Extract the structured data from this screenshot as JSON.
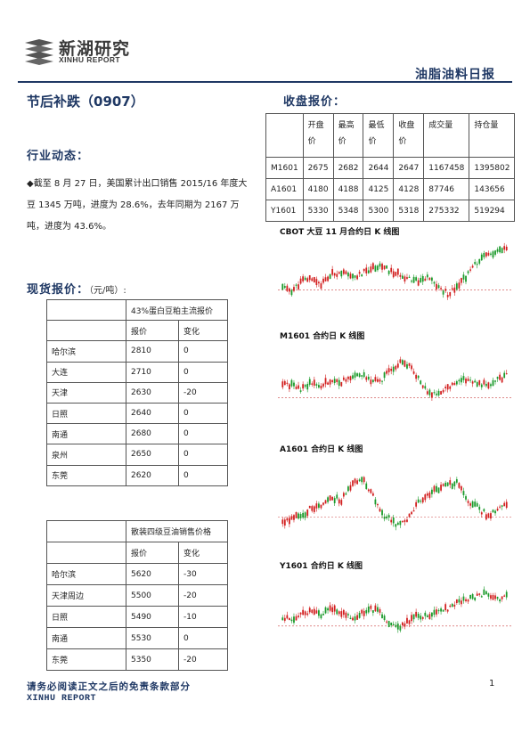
{
  "header": {
    "logo_cn": "新湖研究",
    "logo_en": "XINHU REPORT",
    "report_type": "油脂油料日报"
  },
  "title": "节后补跌（0907）",
  "industry": {
    "heading": "行业动态：",
    "text": "◆截至 8 月 27 日，美国累计出口销售 2015/16 年度大豆 1345 万吨，进度为 28.6%，去年同期为 2167 万吨，进度为 43.6%。"
  },
  "closing": {
    "heading": "收盘报价：",
    "columns": [
      "",
      "开盘价",
      "最高价",
      "最低价",
      "收盘价",
      "成交量",
      "持仓量"
    ],
    "rows": [
      [
        "M1601",
        "2675",
        "2682",
        "2644",
        "2647",
        "1167458",
        "1395802"
      ],
      [
        "A1601",
        "4180",
        "4188",
        "4125",
        "4128",
        "87746",
        "143656"
      ],
      [
        "Y1601",
        "5330",
        "5348",
        "5300",
        "5318",
        "275332",
        "519294"
      ]
    ]
  },
  "spot": {
    "heading": "现货报价：",
    "unit": "（元/吨）:",
    "table1": {
      "title": "43%蛋白豆粕主流报价",
      "col1": "报价",
      "col2": "变化",
      "rows": [
        [
          "哈尔滨",
          "2810",
          "0"
        ],
        [
          "大连",
          "2710",
          "0"
        ],
        [
          "天津",
          "2630",
          "-20"
        ],
        [
          "日照",
          "2640",
          "0"
        ],
        [
          "南通",
          "2680",
          "0"
        ],
        [
          "泉州",
          "2650",
          "0"
        ],
        [
          "东莞",
          "2620",
          "0"
        ]
      ]
    },
    "table2": {
      "title": "散装四级豆油销售价格",
      "col1": "报价",
      "col2": "变化",
      "rows": [
        [
          "哈尔滨",
          "5620",
          "-30"
        ],
        [
          "天津周边",
          "5500",
          "-20"
        ],
        [
          "日照",
          "5490",
          "-10"
        ],
        [
          "南通",
          "5530",
          "0"
        ],
        [
          "东莞",
          "5350",
          "-20"
        ]
      ]
    }
  },
  "charts": [
    {
      "title": "CBOT 大豆 11 月合约日 K 线图",
      "seed": 11,
      "profile": "cbot"
    },
    {
      "title": "M1601 合约日 K 线图",
      "seed": 23,
      "profile": "m"
    },
    {
      "title": "A1601 合约日 K 线图",
      "seed": 37,
      "profile": "a"
    },
    {
      "title": "Y1601 合约日 K 线图",
      "seed": 51,
      "profile": "y"
    }
  ],
  "colors": {
    "up": "#d21f1f",
    "down": "#1a9a2a",
    "brand": "#1f3864"
  },
  "footer": {
    "disclaimer": "请务必阅读正文之后的免责条款部分",
    "en": "XINHU REPORT",
    "page": "1"
  }
}
